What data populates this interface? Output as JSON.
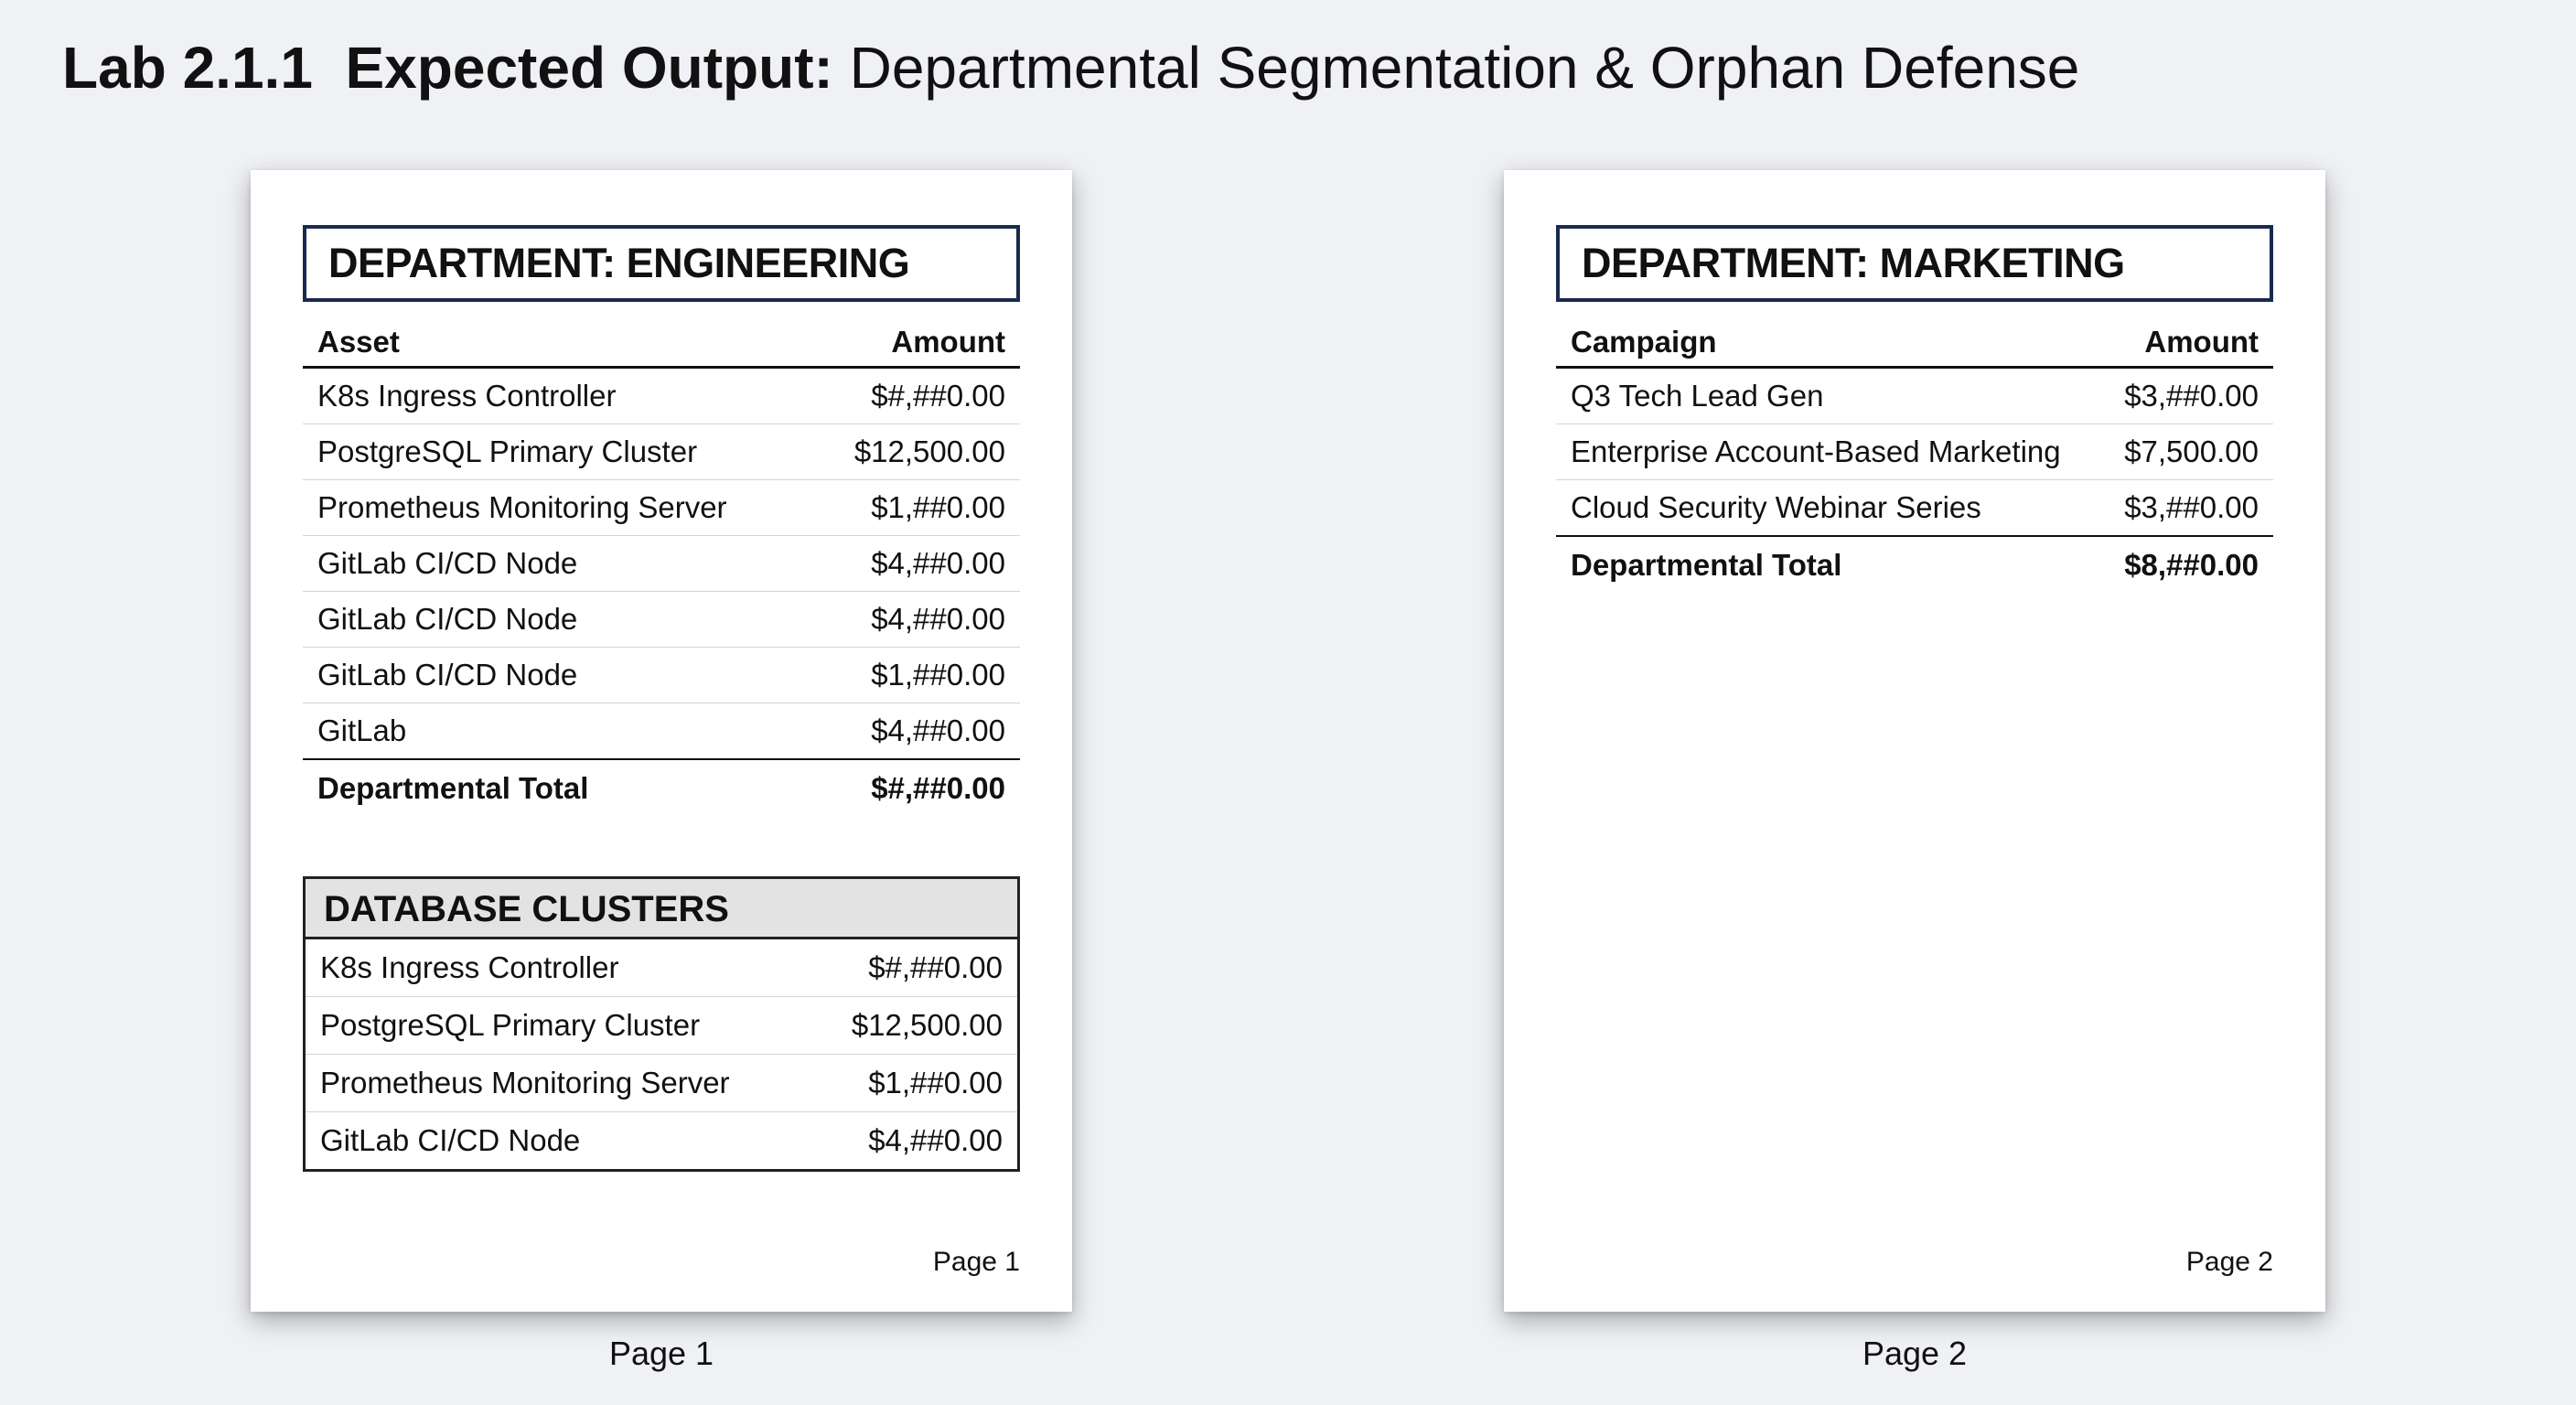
{
  "title": {
    "lab": "Lab 2.1.1",
    "bold": "Expected Output:",
    "rest": "Departmental Segmentation & Orphan Defense"
  },
  "pages": [
    {
      "caption": "Page 1",
      "page_number": "Page 1",
      "department_header": "DEPARTMENT: ENGINEERING",
      "table": {
        "columns": [
          "Asset",
          "Amount"
        ],
        "rows": [
          {
            "name": "K8s Ingress Controller",
            "amount": "$#,##0.00"
          },
          {
            "name": "PostgreSQL Primary Cluster",
            "amount": "$12,500.00"
          },
          {
            "name": "Prometheus Monitoring Server",
            "amount": "$1,##0.00"
          },
          {
            "name": "GitLab CI/CD Node",
            "amount": "$4,##0.00"
          },
          {
            "name": "GitLab CI/CD Node",
            "amount": "$4,##0.00"
          },
          {
            "name": "GitLab CI/CD Node",
            "amount": "$1,##0.00"
          },
          {
            "name": "GitLab",
            "amount": "$4,##0.00"
          }
        ],
        "total": {
          "label": "Departmental Total",
          "amount": "$#,##0.00"
        }
      },
      "section": {
        "title": "DATABASE CLUSTERS",
        "rows": [
          {
            "name": "K8s Ingress Controller",
            "amount": "$#,##0.00"
          },
          {
            "name": "PostgreSQL Primary Cluster",
            "amount": "$12,500.00"
          },
          {
            "name": "Prometheus Monitoring Server",
            "amount": "$1,##0.00"
          },
          {
            "name": "GitLab CI/CD Node",
            "amount": "$4,##0.00"
          }
        ]
      }
    },
    {
      "caption": "Page 2",
      "page_number": "Page 2",
      "department_header": "DEPARTMENT: MARKETING",
      "table": {
        "columns": [
          "Campaign",
          "Amount"
        ],
        "rows": [
          {
            "name": "Q3 Tech Lead Gen",
            "amount": "$3,##0.00"
          },
          {
            "name": "Enterprise Account-Based Marketing",
            "amount": "$7,500.00"
          },
          {
            "name": "Cloud Security Webinar Series",
            "amount": "$3,##0.00"
          }
        ],
        "total": {
          "label": "Departmental Total",
          "amount": "$8,##0.00"
        }
      }
    }
  ],
  "colors": {
    "background": "#eff1f4",
    "header_border": "#1a2a4f",
    "section_header_fill": "#e3e3e3"
  }
}
